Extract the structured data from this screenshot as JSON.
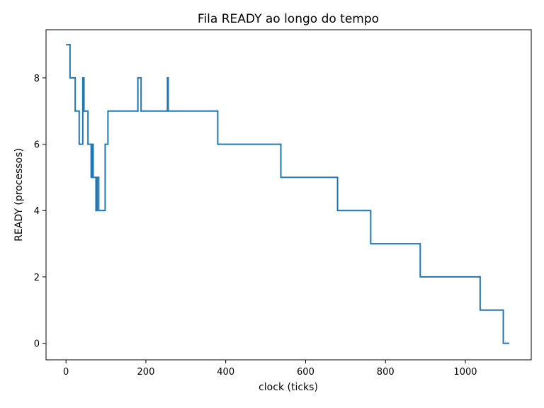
{
  "chart_data": {
    "type": "line",
    "title": "Fila READY ao longo do tempo",
    "xlabel": "clock (ticks)",
    "ylabel": "READY (processos)",
    "xlim": [
      -50,
      1165
    ],
    "ylim": [
      -0.5,
      9.45
    ],
    "xticks": [
      0,
      200,
      400,
      600,
      800,
      1000
    ],
    "yticks": [
      0,
      2,
      4,
      6,
      8
    ],
    "grid": false,
    "series": [
      {
        "color": "#1f77b4",
        "step": "post",
        "x": [
          0,
          10,
          18,
          23,
          30,
          33,
          40,
          42,
          45,
          50,
          55,
          62,
          63,
          65,
          68,
          72,
          75,
          78,
          82,
          85,
          98,
          102,
          105,
          178,
          180,
          188,
          252,
          254,
          256,
          380,
          538,
          680,
          763,
          887,
          1037,
          1095,
          1110
        ],
        "y": [
          9,
          8,
          8,
          7,
          7,
          6,
          6,
          8,
          7,
          7,
          6,
          6,
          5,
          6,
          5,
          5,
          4,
          5,
          4,
          4,
          6,
          6,
          7,
          7,
          8,
          7,
          7,
          8,
          7,
          6,
          5,
          4,
          3,
          2,
          1,
          0,
          0
        ]
      }
    ]
  }
}
